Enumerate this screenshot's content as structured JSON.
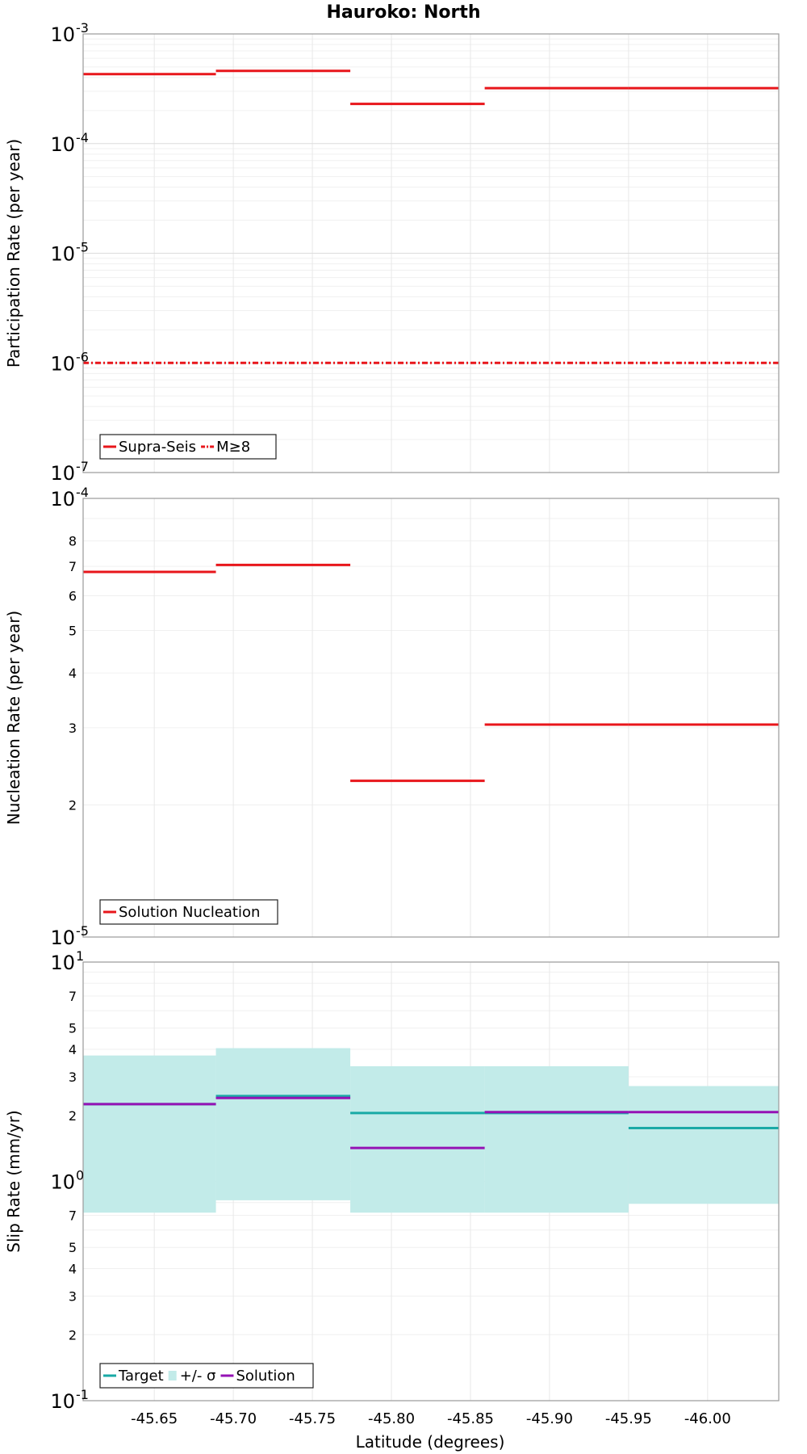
{
  "title": "Hauroko: North",
  "xlabel": "Latitude (degrees)",
  "chart_data": [
    {
      "type": "line",
      "panel": "participation",
      "scale": "log",
      "title": "Hauroko: North",
      "ylabel": "Participation Rate (per year)",
      "ylim": [
        1e-07,
        0.001
      ],
      "xlim": [
        -45.605,
        -46.045
      ],
      "x_ticks": [
        -45.65,
        -45.7,
        -45.75,
        -45.8,
        -45.85,
        -45.9,
        -45.95,
        -46.0
      ],
      "x_tick_labels": [
        "-45.65",
        "-45.70",
        "-45.75",
        "-45.80",
        "-45.85",
        "-45.90",
        "-45.95",
        "-46.00"
      ],
      "y_ticks": [
        {
          "value": 0.001,
          "base": "10",
          "exp": "-3"
        },
        {
          "value": 0.0001,
          "base": "10",
          "exp": "-4"
        },
        {
          "value": 1e-05,
          "base": "10",
          "exp": "-5"
        },
        {
          "value": 1e-06,
          "base": "10",
          "exp": "-6"
        },
        {
          "value": 1e-07,
          "base": "10",
          "exp": "-7"
        }
      ],
      "series": [
        {
          "name": "Supra-Seis",
          "color": "#e8161b",
          "style": "solid",
          "segments": [
            {
              "x0": -45.605,
              "x1": -45.689,
              "y": 0.00043
            },
            {
              "x0": -45.689,
              "x1": -45.774,
              "y": 0.00046
            },
            {
              "x0": -45.774,
              "x1": -45.859,
              "y": 0.00023
            },
            {
              "x0": -45.859,
              "x1": -45.95,
              "y": 0.00032
            },
            {
              "x0": -45.95,
              "x1": -46.045,
              "y": 0.00032
            }
          ]
        },
        {
          "name": "M≥8",
          "color": "#e8161b",
          "style": "dashdot",
          "segments": [
            {
              "x0": -45.605,
              "x1": -46.045,
              "y": 1e-06
            }
          ]
        }
      ],
      "legend": [
        "Supra-Seis",
        "M≥8"
      ]
    },
    {
      "type": "line",
      "panel": "nucleation",
      "scale": "log",
      "ylabel": "Nucleation Rate (per year)",
      "ylim": [
        1e-05,
        0.0001
      ],
      "xlim": [
        -45.605,
        -46.045
      ],
      "y_ticks": [
        {
          "value": 0.0001,
          "base": "10",
          "exp": "-4"
        },
        {
          "value": 1e-05,
          "base": "10",
          "exp": "-5"
        }
      ],
      "y_minor_ticks": [
        {
          "value": 8e-05,
          "label": "8"
        },
        {
          "value": 7e-05,
          "label": "7"
        },
        {
          "value": 6e-05,
          "label": "6"
        },
        {
          "value": 5e-05,
          "label": "5"
        },
        {
          "value": 4e-05,
          "label": "4"
        },
        {
          "value": 3e-05,
          "label": "3"
        },
        {
          "value": 2e-05,
          "label": "2"
        }
      ],
      "series": [
        {
          "name": "Solution Nucleation",
          "color": "#e8161b",
          "style": "solid",
          "segments": [
            {
              "x0": -45.605,
              "x1": -45.689,
              "y": 6.8e-05
            },
            {
              "x0": -45.689,
              "x1": -45.774,
              "y": 7.05e-05
            },
            {
              "x0": -45.774,
              "x1": -45.859,
              "y": 2.27e-05
            },
            {
              "x0": -45.859,
              "x1": -45.95,
              "y": 3.05e-05
            },
            {
              "x0": -45.95,
              "x1": -46.045,
              "y": 3.05e-05
            }
          ]
        }
      ],
      "legend": [
        "Solution Nucleation"
      ]
    },
    {
      "type": "line",
      "panel": "slip",
      "scale": "log",
      "ylabel": "Slip Rate (mm/yr)",
      "ylim": [
        0.1,
        10
      ],
      "xlim": [
        -45.605,
        -46.045
      ],
      "y_ticks": [
        {
          "value": 10,
          "base": "10",
          "exp": "1"
        },
        {
          "value": 1,
          "base": "10",
          "exp": "0"
        },
        {
          "value": 0.1,
          "base": "10",
          "exp": "-1"
        }
      ],
      "y_minor_ticks": [
        {
          "value": 7,
          "label": "7"
        },
        {
          "value": 5,
          "label": "5"
        },
        {
          "value": 4,
          "label": "4"
        },
        {
          "value": 3,
          "label": "3"
        },
        {
          "value": 2,
          "label": "2"
        },
        {
          "value": 0.7,
          "label": "7"
        },
        {
          "value": 0.5,
          "label": "5"
        },
        {
          "value": 0.4,
          "label": "4"
        },
        {
          "value": 0.3,
          "label": "3"
        },
        {
          "value": 0.2,
          "label": "2"
        }
      ],
      "band": {
        "name": "+/- σ",
        "color": "#c2ebe9",
        "segments": [
          {
            "x0": -45.605,
            "x1": -45.689,
            "low": 0.72,
            "high": 3.75
          },
          {
            "x0": -45.689,
            "x1": -45.774,
            "low": 0.82,
            "high": 4.05
          },
          {
            "x0": -45.774,
            "x1": -45.859,
            "low": 0.72,
            "high": 3.35
          },
          {
            "x0": -45.859,
            "x1": -45.95,
            "low": 0.72,
            "high": 3.35
          },
          {
            "x0": -45.95,
            "x1": -46.045,
            "low": 0.79,
            "high": 2.72
          }
        ]
      },
      "series": [
        {
          "name": "Target",
          "color": "#19aaa6",
          "style": "solid",
          "segments": [
            {
              "x0": -45.605,
              "x1": -45.689,
              "y": 2.25
            },
            {
              "x0": -45.689,
              "x1": -45.774,
              "y": 2.45
            },
            {
              "x0": -45.774,
              "x1": -45.859,
              "y": 2.05
            },
            {
              "x0": -45.859,
              "x1": -45.95,
              "y": 2.05
            },
            {
              "x0": -45.95,
              "x1": -46.045,
              "y": 1.75
            }
          ]
        },
        {
          "name": "Solution",
          "color": "#9512b5",
          "style": "solid",
          "segments": [
            {
              "x0": -45.605,
              "x1": -45.689,
              "y": 2.25
            },
            {
              "x0": -45.689,
              "x1": -45.774,
              "y": 2.4
            },
            {
              "x0": -45.774,
              "x1": -45.859,
              "y": 1.42
            },
            {
              "x0": -45.859,
              "x1": -45.95,
              "y": 2.07
            },
            {
              "x0": -45.95,
              "x1": -46.045,
              "y": 2.07
            }
          ]
        }
      ],
      "legend": [
        "Target",
        "+/- σ",
        "Solution"
      ]
    }
  ]
}
